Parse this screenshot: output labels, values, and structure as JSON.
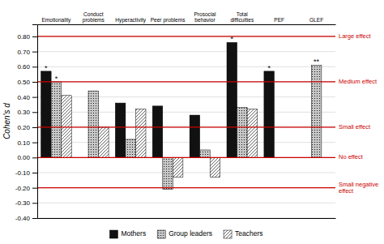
{
  "chart_data": {
    "type": "bar",
    "y_label": "Cohen's d",
    "categories": [
      "Emotionality",
      "Conduct\nproblems",
      "Hyperactivity",
      "Peer problems",
      "Prosocial\nbehavior",
      "Total\ndifficulties",
      "PEF",
      "GLEF"
    ],
    "series": [
      {
        "name": "Mothers",
        "color": "#111111",
        "values": [
          0.57,
          0.0,
          0.36,
          0.34,
          0.28,
          0.76,
          0.57,
          0.0
        ]
      },
      {
        "name": "Group leaders",
        "color": "#c8c8c8",
        "values": [
          0.5,
          0.44,
          0.12,
          -0.21,
          0.05,
          0.33,
          0.0,
          0.61
        ]
      },
      {
        "name": "Teachers",
        "color": "#ffffff",
        "values": [
          0.41,
          0.2,
          0.32,
          -0.13,
          -0.13,
          0.32,
          0.0,
          0.0
        ]
      }
    ],
    "ylim": [
      -0.4,
      0.88
    ],
    "yticks": [
      {
        "value": -0.4,
        "label": "-0.40"
      },
      {
        "value": -0.3,
        "label": "-0.30"
      },
      {
        "value": -0.2,
        "label": "-0.20"
      },
      {
        "value": -0.1,
        "label": "-0.10"
      },
      {
        "value": 0.0,
        "label": "0.00"
      },
      {
        "value": 0.1,
        "label": "0.10"
      },
      {
        "value": 0.2,
        "label": "0.20"
      },
      {
        "value": 0.3,
        "label": "0.30"
      },
      {
        "value": 0.4,
        "label": "0.40"
      },
      {
        "value": 0.5,
        "label": "0.50"
      },
      {
        "value": 0.6,
        "label": "0.60"
      },
      {
        "value": 0.7,
        "label": "0.70"
      },
      {
        "value": 0.8,
        "label": "0.80"
      }
    ],
    "grid": true,
    "legend": "bottom",
    "reference_lines": [
      {
        "value": 0.8,
        "label": "Large effect",
        "color": "#cc0000"
      },
      {
        "value": 0.5,
        "label": "Medium effect",
        "color": "#cc0000"
      },
      {
        "value": 0.2,
        "label": "Small effect",
        "color": "#cc0000"
      },
      {
        "value": 0.0,
        "label": "No effect",
        "color": "#cc0000"
      },
      {
        "value": -0.2,
        "label": "Small negative\neffect",
        "color": "#cc0000"
      }
    ],
    "annotations": [
      {
        "text": "*",
        "category": "Emotionality",
        "series": "Mothers"
      },
      {
        "text": "*",
        "category": "Emotionality",
        "series": "Group leaders"
      },
      {
        "text": "*",
        "category": "Total\ndifficulties",
        "series": "Mothers"
      },
      {
        "text": "*",
        "category": "PEF",
        "series": "Mothers"
      },
      {
        "text": "**",
        "category": "GLEF",
        "series": "Group leaders"
      }
    ]
  }
}
